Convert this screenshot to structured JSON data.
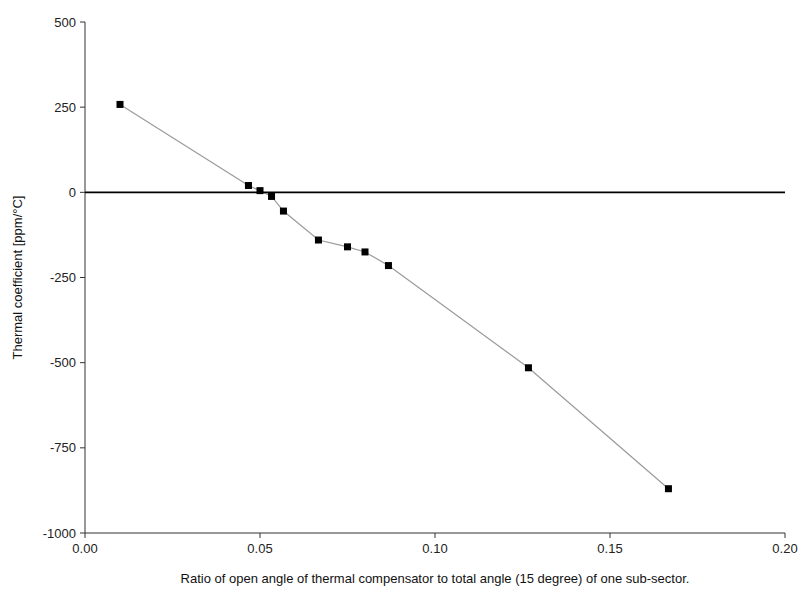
{
  "chart_data": {
    "type": "line",
    "x": [
      0.01,
      0.0467,
      0.05,
      0.0533,
      0.0567,
      0.0667,
      0.075,
      0.08,
      0.0867,
      0.1267,
      0.1667
    ],
    "series": [
      {
        "values": [
          258,
          20,
          5,
          -12,
          -55,
          -140,
          -160,
          -175,
          -215,
          -515,
          -870
        ],
        "color": "#000000",
        "marker": "square",
        "line_style": "solid"
      }
    ],
    "xlabel": "Ratio of open angle of thermal compensator to total angle (15 degree) of one sub-sector.",
    "ylabel": "Thermal coefficient [ppm/°C]",
    "xlim": [
      0.0,
      0.2
    ],
    "ylim": [
      -1000,
      500
    ],
    "xticks": [
      {
        "value": 0.0,
        "label": "0.00"
      },
      0.05,
      {
        "value": 0.1,
        "label": "0.10"
      },
      0.15,
      {
        "value": 0.2,
        "label": "0.20"
      }
    ],
    "yticks": [
      -1000,
      -750,
      -500,
      -250,
      0,
      250,
      500
    ],
    "reference_line": {
      "y": 0,
      "color": "#000000"
    },
    "grid": false
  }
}
